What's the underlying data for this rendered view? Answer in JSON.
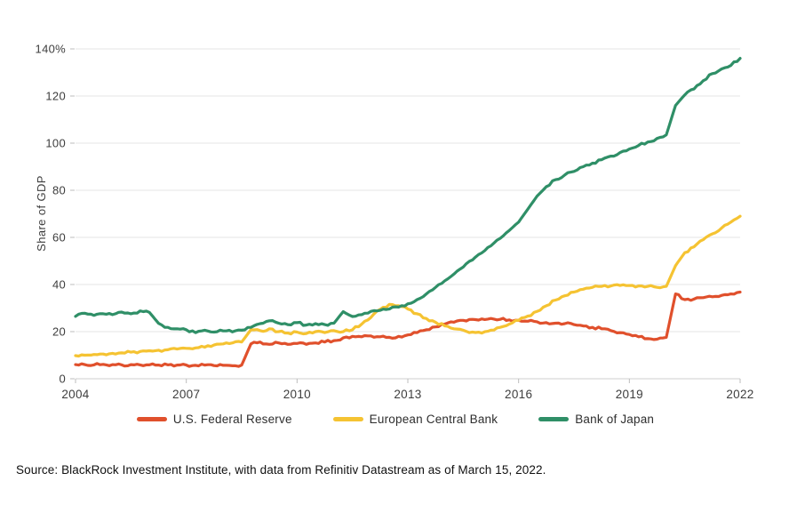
{
  "source": "Source: BlackRock Investment Institute, with data from Refinitiv Datastream as of March 15, 2022.",
  "chart_data": {
    "type": "line",
    "title": "",
    "xlabel": "",
    "ylabel": "Share of GDP",
    "xlim": [
      2004,
      2022
    ],
    "ylim": [
      0,
      140
    ],
    "x_ticks": [
      2004,
      2007,
      2010,
      2013,
      2016,
      2019,
      2022
    ],
    "y_ticks": [
      0,
      20,
      40,
      60,
      80,
      100,
      120,
      140
    ],
    "y_tick_labels": [
      "0",
      "20",
      "40",
      "60",
      "80",
      "100",
      "120",
      "140%"
    ],
    "grid": true,
    "legend_position": "bottom",
    "x_start": 2004,
    "x_step": 0.25,
    "axis_color": "#cfcfcf",
    "grid_color": "#e4e4e4",
    "tick_color": "#bdbdbd",
    "label_color": "#3d3d3d",
    "series": [
      {
        "name": "U.S. Federal Reserve",
        "color": "#E0502C",
        "values": [
          6.0,
          6.0,
          5.9,
          6.1,
          6.0,
          5.9,
          6.0,
          5.9,
          5.9,
          5.8,
          5.9,
          5.8,
          5.8,
          5.7,
          5.8,
          5.6,
          5.7,
          5.5,
          5.8,
          14.8,
          15.6,
          14.6,
          15.2,
          14.6,
          15.0,
          14.6,
          15.2,
          15.6,
          16.2,
          17.4,
          18.0,
          17.8,
          18.2,
          17.8,
          17.6,
          18.0,
          18.6,
          19.6,
          20.8,
          22.0,
          23.2,
          24.0,
          24.8,
          25.2,
          25.4,
          25.6,
          25.2,
          25.0,
          24.8,
          24.4,
          24.2,
          23.8,
          23.6,
          23.4,
          23.0,
          22.4,
          21.8,
          21.2,
          20.4,
          19.6,
          18.8,
          17.8,
          17.0,
          16.8,
          17.6,
          36.0,
          33.6,
          33.8,
          34.4,
          34.8,
          35.4,
          36.0,
          36.8
        ]
      },
      {
        "name": "European Central Bank",
        "color": "#F5C332",
        "values": [
          9.8,
          10.0,
          10.3,
          10.5,
          10.8,
          11.0,
          11.3,
          11.6,
          11.9,
          12.1,
          12.3,
          12.6,
          12.9,
          13.1,
          13.4,
          14.3,
          14.8,
          15.2,
          15.6,
          20.8,
          20.4,
          21.2,
          20.0,
          19.4,
          19.8,
          19.2,
          20.0,
          19.6,
          20.4,
          20.0,
          20.8,
          23.2,
          26.0,
          29.4,
          31.6,
          31.0,
          29.6,
          27.6,
          25.6,
          24.0,
          22.4,
          21.2,
          20.6,
          19.8,
          19.4,
          20.6,
          21.8,
          23.2,
          24.8,
          26.6,
          28.6,
          31.0,
          33.4,
          35.2,
          36.8,
          38.0,
          38.8,
          39.2,
          39.4,
          39.6,
          39.6,
          39.4,
          39.2,
          38.8,
          39.2,
          48.0,
          53.5,
          56.0,
          59.0,
          61.5,
          64.0,
          66.5,
          69.0
        ]
      },
      {
        "name": "Bank of Japan",
        "color": "#2F8F67",
        "values": [
          26.5,
          27.8,
          26.9,
          27.6,
          27.2,
          28.3,
          27.6,
          28.8,
          28.2,
          23.5,
          21.8,
          21.2,
          20.8,
          19.6,
          20.6,
          19.8,
          20.3,
          19.9,
          20.6,
          21.8,
          23.4,
          24.6,
          23.6,
          23.0,
          23.8,
          22.8,
          23.4,
          23.0,
          23.6,
          28.5,
          26.4,
          27.2,
          28.6,
          29.0,
          29.6,
          30.4,
          31.8,
          33.6,
          36.0,
          38.8,
          41.6,
          44.4,
          47.4,
          50.4,
          53.4,
          56.4,
          59.6,
          63.0,
          66.5,
          72.0,
          77.5,
          81.5,
          84.5,
          86.5,
          88.0,
          90.0,
          91.5,
          93.0,
          94.5,
          96.0,
          97.5,
          99.0,
          100.5,
          102.0,
          103.5,
          116.0,
          120.5,
          123.0,
          126.5,
          129.5,
          131.5,
          133.0,
          136.0
        ]
      }
    ]
  }
}
